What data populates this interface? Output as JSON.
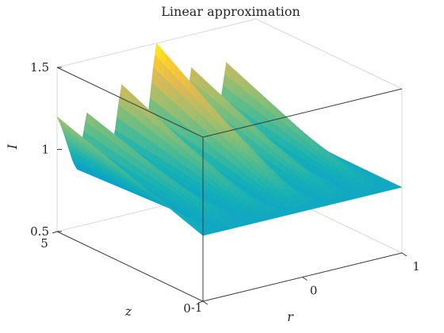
{
  "chart_data": {
    "type": "surface",
    "title": "Linear approximation",
    "xlabel": "r",
    "ylabel": "z",
    "zlabel": "I",
    "xlim": [
      -1,
      1
    ],
    "ylim": [
      0,
      5
    ],
    "zlim": [
      0.5,
      1.5
    ],
    "xticks": [
      "-1",
      "0",
      "1"
    ],
    "yticks": [
      "0",
      "5"
    ],
    "zticks": [
      "0.5",
      "1",
      "1.5"
    ],
    "grid": false,
    "colormap": "parula",
    "box": "full 3-D box outline",
    "surface_model": "I(r, z): front edge at z = 0 is flat at 0.9; ridges grow linearly along z and reach their peak heights at z = 5",
    "baseline": 0.9,
    "series": [
      {
        "points": [
          {
            "z": 5.0,
            "r": -1.0,
            "I": 1.2
          }
        ]
      },
      {
        "points": [
          {
            "z": 5.0,
            "r": -0.8,
            "I": 0.85
          },
          {
            "z": 5.0,
            "r": -0.7,
            "I": 1.18
          }
        ]
      },
      {
        "points": [
          {
            "z": 5.0,
            "r": -0.35,
            "I": 1.3
          }
        ]
      },
      {
        "points": [
          {
            "z": 5.0,
            "r": 0.0,
            "I": 1.5
          }
        ]
      },
      {
        "points": [
          {
            "z": 5.0,
            "r": 0.35,
            "I": 1.3
          }
        ]
      },
      {
        "points": [
          {
            "z": 5.0,
            "r": 0.7,
            "I": 1.28
          }
        ]
      }
    ]
  }
}
